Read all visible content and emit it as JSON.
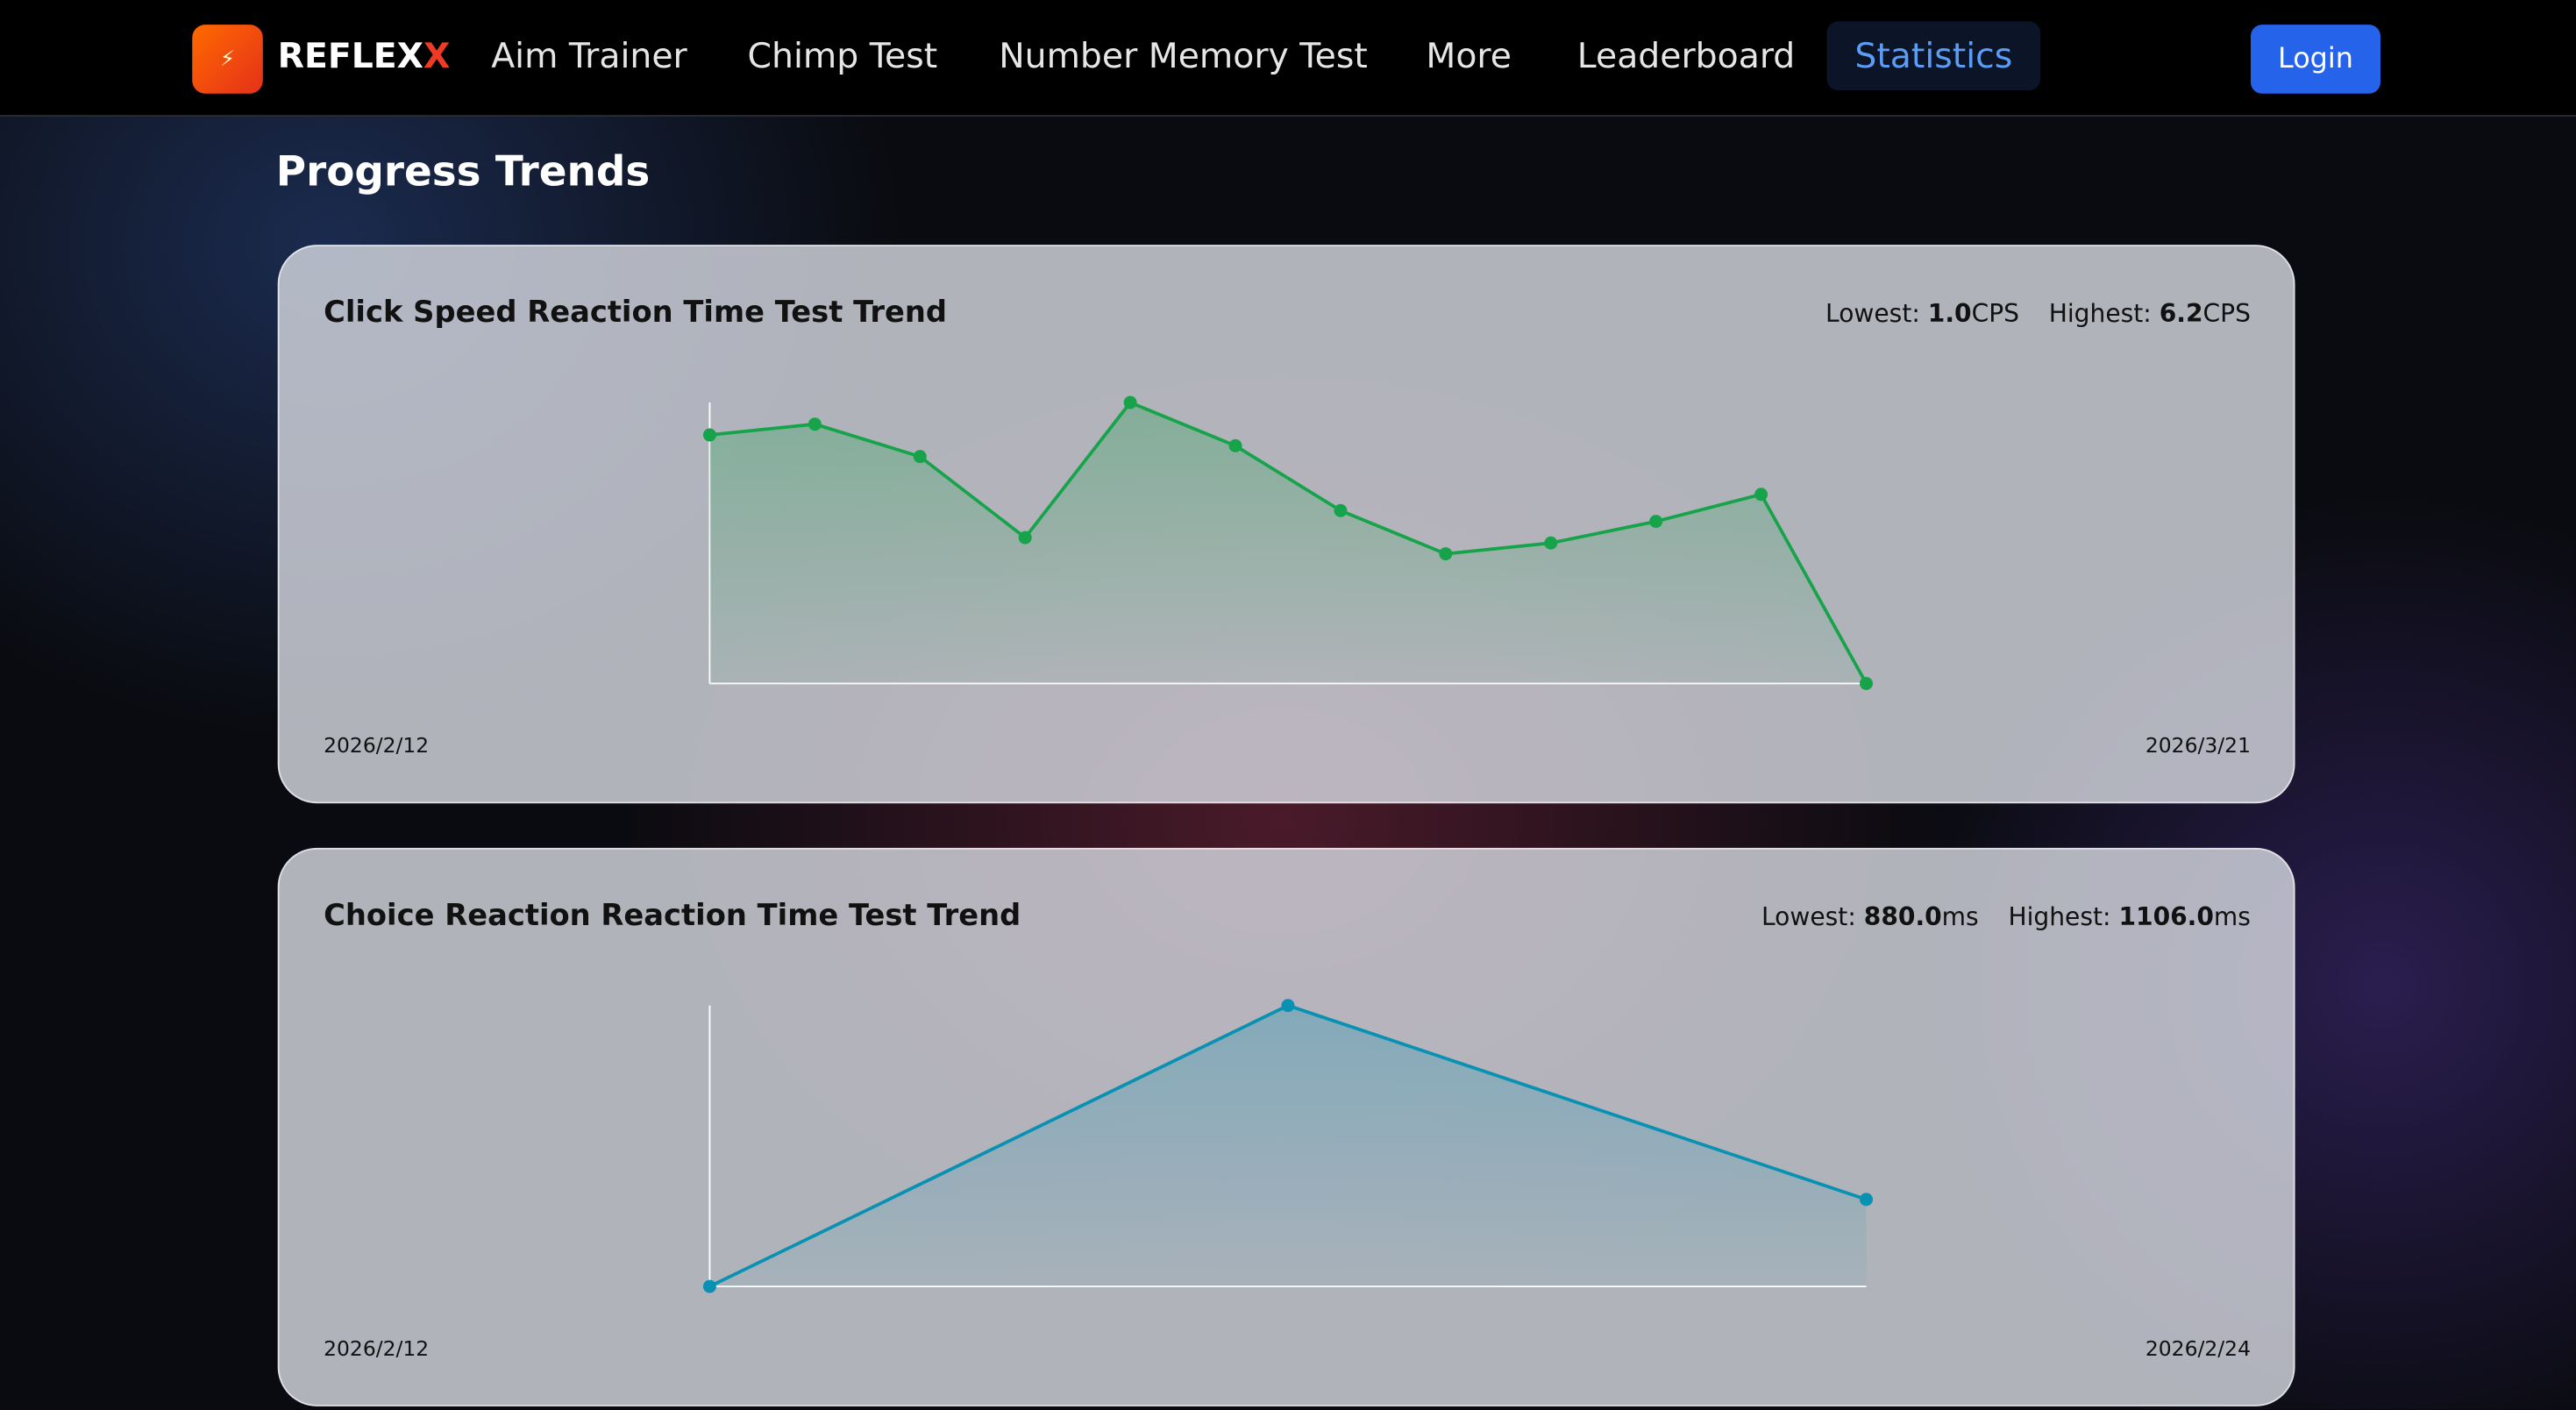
{
  "brand": {
    "name": "REFLEX",
    "accent": "X",
    "icon": "⚡"
  },
  "nav": [
    "Aim Trainer",
    "Chimp Test",
    "Number Memory Test",
    "More",
    "Leaderboard",
    "Statistics"
  ],
  "login": "Login",
  "page_title": "Progress Trends",
  "charts": [
    {
      "type": "line",
      "title": "Click Speed Reaction Time Test Trend",
      "lowest_label": "Lowest:",
      "lowest": {
        "value": 1,
        "label": "1.0"
      },
      "highest_label": "Highest:",
      "highest": {
        "value": 6.2,
        "label": "6.2"
      },
      "unit": "CPS",
      "start_date": "2026/2/12",
      "end_date": "2026/3/21",
      "color": "#16a34a",
      "values": [
        5.6,
        5.8,
        5.2,
        3.7,
        6.2,
        5.4,
        4.2,
        3.4,
        3.6,
        4.0,
        4.5,
        1.0
      ]
    },
    {
      "type": "line",
      "title": "Choice Reaction Reaction Time Test Trend",
      "lowest_label": "Lowest:",
      "lowest": {
        "value": 880,
        "label": "880.0"
      },
      "highest_label": "Highest:",
      "highest": {
        "value": 1106,
        "label": "1106.0"
      },
      "unit": "ms",
      "start_date": "2026/2/12",
      "end_date": "2026/2/24",
      "color": "#0891b2",
      "values": [
        880,
        1106,
        950
      ]
    }
  ]
}
